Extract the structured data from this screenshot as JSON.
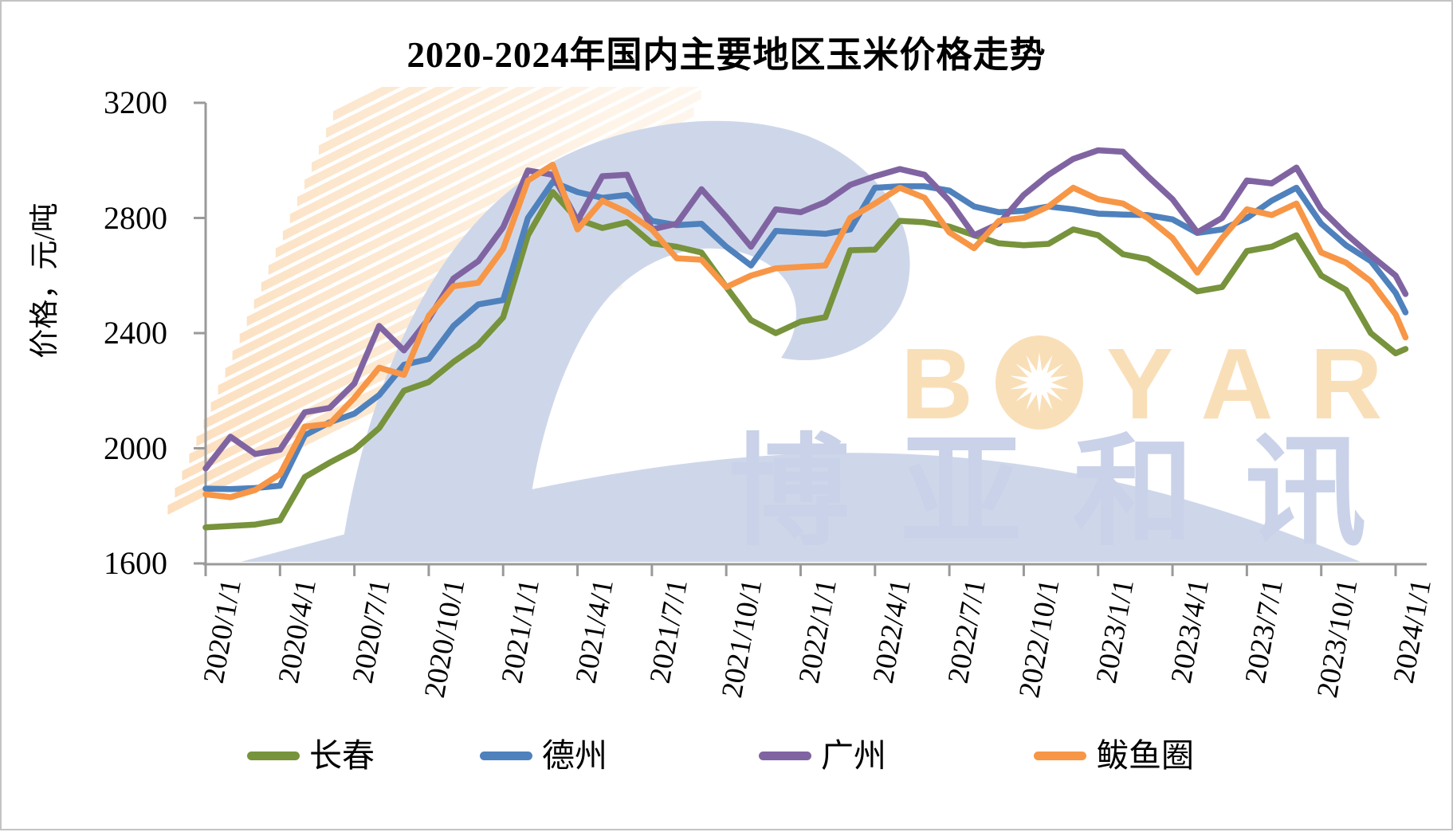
{
  "title": "2020-2024年国内主要地区玉米价格走势",
  "y_axis_title": "价格，元/吨",
  "watermark": {
    "text_before_star": "B",
    "text_after_star": "YAR",
    "cn_text": "博亚和讯",
    "latin_color": "#F9DFB8",
    "cn_color": "#C9D2E8",
    "swoosh_color": "#CED7EA",
    "stripe_color": "#F7B161"
  },
  "chart_data": {
    "type": "line",
    "title": "2020-2024年国内主要地区玉米价格走势",
    "xlabel": "",
    "ylabel": "价格，元/吨",
    "ylim": [
      1600,
      3200
    ],
    "y_ticks": [
      1600,
      2000,
      2400,
      2800,
      3200
    ],
    "grid": false,
    "legend_position": "bottom",
    "axis_color": "#9A9A9A",
    "x_unit": "months since 2020/1/1 (series sampled monthly from weekly price curve)",
    "x": [
      0,
      1,
      2,
      3,
      4,
      5,
      6,
      7,
      8,
      9,
      10,
      11,
      12,
      13,
      14,
      15,
      16,
      17,
      18,
      19,
      20,
      21,
      22,
      23,
      24,
      25,
      26,
      27,
      28,
      29,
      30,
      31,
      32,
      33,
      34,
      35,
      36,
      37,
      38,
      39,
      40,
      41,
      42,
      43,
      44,
      45,
      46,
      47,
      48,
      48.4
    ],
    "x_tick_positions": [
      0,
      3,
      6,
      9,
      12,
      15,
      18,
      21,
      24,
      27,
      30,
      33,
      36,
      39,
      42,
      45,
      48
    ],
    "x_tick_labels": [
      "2020/1/1",
      "2020/4/1",
      "2020/7/1",
      "2020/10/1",
      "2021/1/1",
      "2021/4/1",
      "2021/7/1",
      "2021/10/1",
      "2022/1/1",
      "2022/4/1",
      "2022/7/1",
      "2022/10/1",
      "2023/1/1",
      "2023/4/1",
      "2023/7/1",
      "2023/10/1",
      "2024/1/1"
    ],
    "series": [
      {
        "name": "长春",
        "color": "#77933C",
        "values": [
          1725,
          1730,
          1735,
          1750,
          1900,
          1950,
          1995,
          2070,
          2200,
          2230,
          2300,
          2360,
          2455,
          2740,
          2890,
          2795,
          2765,
          2785,
          2712,
          2700,
          2680,
          2560,
          2445,
          2400,
          2440,
          2455,
          2688,
          2690,
          2790,
          2785,
          2770,
          2740,
          2712,
          2705,
          2710,
          2760,
          2740,
          2674,
          2657,
          2602,
          2545,
          2560,
          2685,
          2700,
          2740,
          2600,
          2550,
          2400,
          2330,
          2345
        ]
      },
      {
        "name": "德州",
        "color": "#4F81BD",
        "values": [
          1860,
          1858,
          1862,
          1870,
          2045,
          2090,
          2120,
          2185,
          2290,
          2310,
          2425,
          2500,
          2515,
          2800,
          2925,
          2890,
          2870,
          2880,
          2790,
          2775,
          2780,
          2700,
          2635,
          2755,
          2750,
          2745,
          2760,
          2905,
          2910,
          2910,
          2895,
          2840,
          2820,
          2825,
          2840,
          2830,
          2815,
          2812,
          2810,
          2795,
          2748,
          2760,
          2800,
          2860,
          2905,
          2780,
          2705,
          2650,
          2540,
          2472
        ]
      },
      {
        "name": "广州",
        "color": "#8064A2",
        "values": [
          1930,
          2040,
          1980,
          1995,
          2125,
          2140,
          2225,
          2425,
          2340,
          2450,
          2590,
          2650,
          2768,
          2965,
          2950,
          2790,
          2945,
          2950,
          2760,
          2780,
          2900,
          2804,
          2700,
          2830,
          2820,
          2855,
          2915,
          2945,
          2970,
          2950,
          2860,
          2740,
          2780,
          2880,
          2950,
          3005,
          3035,
          3030,
          2945,
          2865,
          2750,
          2800,
          2930,
          2920,
          2975,
          2830,
          2745,
          2670,
          2600,
          2536
        ]
      },
      {
        "name": "鲅鱼圈",
        "color": "#F79646",
        "values": [
          1840,
          1830,
          1855,
          1910,
          2075,
          2085,
          2175,
          2280,
          2255,
          2460,
          2563,
          2575,
          2693,
          2930,
          2985,
          2760,
          2860,
          2820,
          2760,
          2660,
          2655,
          2560,
          2600,
          2625,
          2630,
          2635,
          2800,
          2850,
          2905,
          2870,
          2750,
          2695,
          2790,
          2800,
          2840,
          2905,
          2865,
          2850,
          2800,
          2730,
          2610,
          2730,
          2830,
          2810,
          2850,
          2680,
          2645,
          2580,
          2465,
          2385
        ]
      }
    ]
  }
}
